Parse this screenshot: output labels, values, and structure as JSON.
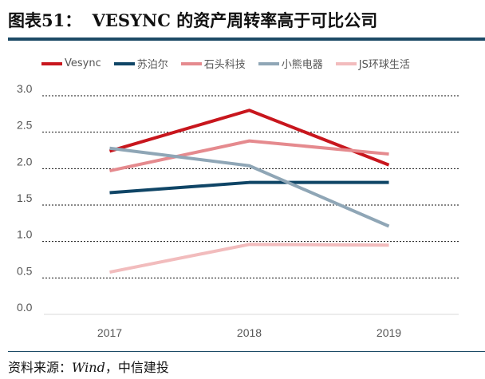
{
  "title": {
    "prefix": "图表51：",
    "text": "VESYNC 的资产周转率高于可比公司"
  },
  "source": {
    "label": "资料来源：",
    "wind": "Wind",
    "rest": "，中信建投"
  },
  "chart_data": {
    "type": "line",
    "title": "VESYNC 的资产周转率高于可比公司",
    "categories": [
      "2017",
      "2018",
      "2019"
    ],
    "ylim": [
      0,
      3.0
    ],
    "yticks": [
      "0.0",
      "0.5",
      "1.0",
      "1.5",
      "2.0",
      "2.5",
      "3.0"
    ],
    "grid": true,
    "legend_position": "top",
    "series": [
      {
        "name": "Vesync",
        "color": "#c8161d",
        "values": [
          2.24,
          2.8,
          2.05
        ]
      },
      {
        "name": "苏泊尔",
        "color": "#0f4566",
        "values": [
          1.67,
          1.81,
          1.81
        ]
      },
      {
        "name": "石头科技",
        "color": "#e58a8e",
        "values": [
          1.97,
          2.38,
          2.2
        ]
      },
      {
        "name": "小熊电器",
        "color": "#8fa6b6",
        "values": [
          2.28,
          2.04,
          1.21
        ]
      },
      {
        "name": "JS环球生活",
        "color": "#f2bcbd",
        "values": [
          0.58,
          0.96,
          0.95
        ]
      }
    ]
  }
}
